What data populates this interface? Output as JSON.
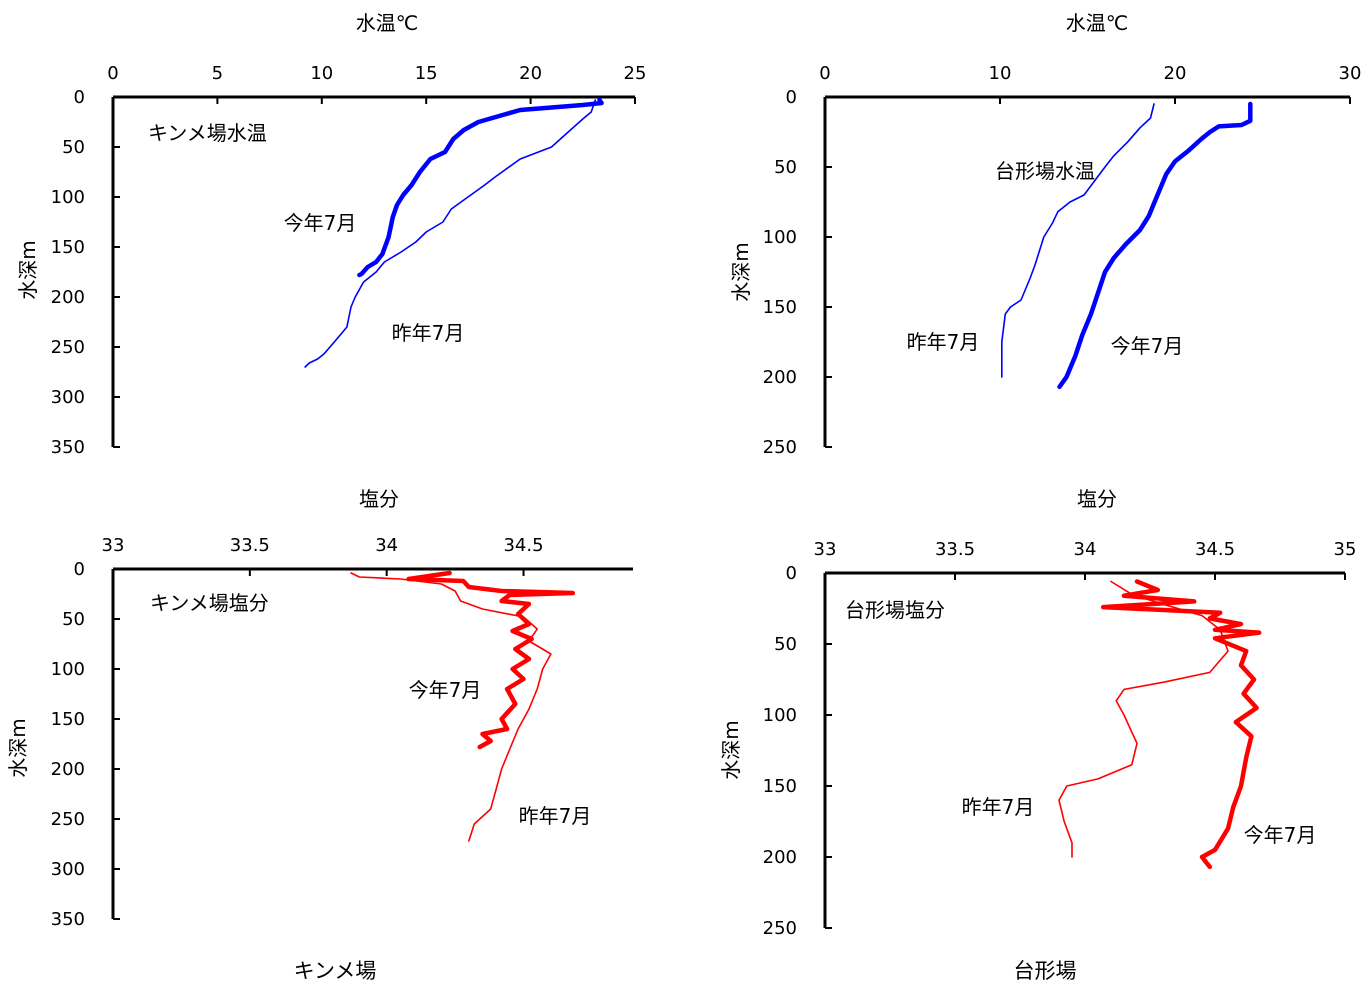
{
  "chart_data": [
    {
      "type": "line",
      "title": "",
      "xlabel": "水温℃",
      "ylabel": "水深m",
      "xlim": [
        0,
        25
      ],
      "ylim": [
        0,
        350
      ],
      "x_axis_position": "top",
      "y_inverted": true,
      "xticks": [
        0,
        5,
        10,
        15,
        20,
        25
      ],
      "yticks": [
        0,
        50,
        100,
        150,
        200,
        250,
        300,
        350
      ],
      "annotation": "キンメ場水温",
      "series": [
        {
          "name": "今年7月",
          "color": "#0000ff",
          "emphasis": "thick",
          "points": [
            [
              23.3,
              3
            ],
            [
              23.4,
              6
            ],
            [
              22.5,
              8
            ],
            [
              19.5,
              13
            ],
            [
              17.5,
              25
            ],
            [
              16.8,
              33
            ],
            [
              16.3,
              42
            ],
            [
              15.9,
              55
            ],
            [
              15.2,
              62
            ],
            [
              14.7,
              75
            ],
            [
              14.3,
              88
            ],
            [
              13.9,
              98
            ],
            [
              13.6,
              108
            ],
            [
              13.4,
              120
            ],
            [
              13.2,
              140
            ],
            [
              12.9,
              157
            ],
            [
              12.6,
              165
            ],
            [
              12.2,
              170
            ],
            [
              11.9,
              177
            ],
            [
              11.8,
              178
            ]
          ]
        },
        {
          "name": "昨年7月",
          "color": "#0000ff",
          "emphasis": "thin",
          "points": [
            [
              23.1,
              3
            ],
            [
              22.9,
              15
            ],
            [
              22.5,
              22
            ],
            [
              21.8,
              35
            ],
            [
              21.0,
              50
            ],
            [
              19.5,
              62
            ],
            [
              18.3,
              80
            ],
            [
              17.8,
              88
            ],
            [
              17.0,
              100
            ],
            [
              16.2,
              112
            ],
            [
              15.8,
              125
            ],
            [
              15.0,
              135
            ],
            [
              14.5,
              145
            ],
            [
              13.8,
              155
            ],
            [
              13.0,
              165
            ],
            [
              12.6,
              175
            ],
            [
              12.0,
              185
            ],
            [
              11.6,
              200
            ],
            [
              11.4,
              210
            ],
            [
              11.2,
              230
            ],
            [
              10.6,
              245
            ],
            [
              10.1,
              257
            ],
            [
              9.8,
              262
            ],
            [
              9.4,
              266
            ],
            [
              9.2,
              270
            ]
          ]
        }
      ],
      "labels": [
        {
          "text": "今年7月",
          "series": "今年7月"
        },
        {
          "text": "昨年7月",
          "series": "昨年7月"
        }
      ]
    },
    {
      "type": "line",
      "title": "",
      "xlabel": "水温℃",
      "ylabel": "水深m",
      "xlim": [
        0,
        30
      ],
      "ylim": [
        0,
        250
      ],
      "x_axis_position": "top",
      "y_inverted": true,
      "xticks": [
        0,
        10,
        20,
        30
      ],
      "yticks": [
        0,
        50,
        100,
        150,
        200,
        250
      ],
      "annotation": "台形場水温",
      "series": [
        {
          "name": "今年7月",
          "color": "#0000ff",
          "emphasis": "thick",
          "points": [
            [
              24.3,
              5
            ],
            [
              24.3,
              17
            ],
            [
              23.8,
              20
            ],
            [
              22.5,
              21
            ],
            [
              22.0,
              25
            ],
            [
              21.5,
              30
            ],
            [
              20.8,
              38
            ],
            [
              20.0,
              46
            ],
            [
              19.5,
              55
            ],
            [
              19.0,
              70
            ],
            [
              18.5,
              85
            ],
            [
              18.0,
              95
            ],
            [
              17.2,
              105
            ],
            [
              16.5,
              115
            ],
            [
              16.0,
              125
            ],
            [
              15.6,
              140
            ],
            [
              15.2,
              155
            ],
            [
              14.7,
              170
            ],
            [
              14.3,
              185
            ],
            [
              13.8,
              200
            ],
            [
              13.4,
              207
            ]
          ]
        },
        {
          "name": "昨年7月",
          "color": "#0000ff",
          "emphasis": "thin",
          "points": [
            [
              18.8,
              5
            ],
            [
              18.6,
              15
            ],
            [
              18.0,
              22
            ],
            [
              17.3,
              32
            ],
            [
              16.5,
              42
            ],
            [
              16.0,
              50
            ],
            [
              15.4,
              60
            ],
            [
              14.8,
              70
            ],
            [
              14.0,
              75
            ],
            [
              13.3,
              82
            ],
            [
              13.0,
              90
            ],
            [
              12.5,
              100
            ],
            [
              12.0,
              120
            ],
            [
              11.7,
              130
            ],
            [
              11.2,
              145
            ],
            [
              10.6,
              150
            ],
            [
              10.3,
              155
            ],
            [
              10.1,
              175
            ],
            [
              10.1,
              200
            ]
          ]
        }
      ],
      "labels": [
        {
          "text": "今年7月",
          "series": "今年7月"
        },
        {
          "text": "昨年7月",
          "series": "昨年7月"
        }
      ]
    },
    {
      "type": "line",
      "title": "",
      "xlabel": "塩分",
      "ylabel": "水深m",
      "xlim": [
        33,
        34.9
      ],
      "ylim": [
        0,
        350
      ],
      "x_axis_position": "top",
      "y_inverted": true,
      "xticks": [
        33,
        33.5,
        34,
        34.5
      ],
      "yticks": [
        0,
        50,
        100,
        150,
        200,
        250,
        300,
        350
      ],
      "annotation": "キンメ場塩分",
      "series": [
        {
          "name": "今年7月",
          "color": "#ff0000",
          "emphasis": "thick",
          "points": [
            [
              34.23,
              4
            ],
            [
              34.08,
              10
            ],
            [
              34.28,
              12
            ],
            [
              34.3,
              18
            ],
            [
              34.42,
              22
            ],
            [
              34.68,
              24
            ],
            [
              34.45,
              26
            ],
            [
              34.42,
              32
            ],
            [
              34.52,
              35
            ],
            [
              34.48,
              45
            ],
            [
              34.52,
              55
            ],
            [
              34.46,
              62
            ],
            [
              34.53,
              70
            ],
            [
              34.47,
              80
            ],
            [
              34.52,
              90
            ],
            [
              34.46,
              100
            ],
            [
              34.5,
              110
            ],
            [
              34.44,
              120
            ],
            [
              34.47,
              135
            ],
            [
              34.42,
              150
            ],
            [
              34.44,
              160
            ],
            [
              34.35,
              165
            ],
            [
              34.38,
              172
            ],
            [
              34.34,
              178
            ]
          ]
        },
        {
          "name": "昨年7月",
          "color": "#ff0000",
          "emphasis": "thin",
          "points": [
            [
              33.87,
              4
            ],
            [
              33.9,
              8
            ],
            [
              34.05,
              10
            ],
            [
              34.2,
              15
            ],
            [
              34.25,
              22
            ],
            [
              34.27,
              32
            ],
            [
              34.35,
              40
            ],
            [
              34.5,
              48
            ],
            [
              34.55,
              60
            ],
            [
              34.52,
              72
            ],
            [
              34.6,
              85
            ],
            [
              34.57,
              100
            ],
            [
              34.55,
              120
            ],
            [
              34.52,
              140
            ],
            [
              34.48,
              160
            ],
            [
              34.45,
              180
            ],
            [
              34.42,
              200
            ],
            [
              34.4,
              220
            ],
            [
              34.38,
              240
            ],
            [
              34.32,
              255
            ],
            [
              34.3,
              272
            ]
          ]
        }
      ],
      "labels": [
        {
          "text": "今年7月",
          "series": "今年7月"
        },
        {
          "text": "昨年7月",
          "series": "昨年7月"
        }
      ]
    },
    {
      "type": "line",
      "title": "",
      "xlabel": "塩分",
      "ylabel": "水深m",
      "xlim": [
        33,
        35
      ],
      "ylim": [
        0,
        250
      ],
      "x_axis_position": "top",
      "y_inverted": true,
      "xticks": [
        33,
        33.5,
        34,
        34.5,
        35
      ],
      "yticks": [
        0,
        50,
        100,
        150,
        200,
        250
      ],
      "annotation": "台形場塩分",
      "series": [
        {
          "name": "今年7月",
          "color": "#ff0000",
          "emphasis": "thick",
          "points": [
            [
              34.2,
              6
            ],
            [
              34.28,
              12
            ],
            [
              34.15,
              16
            ],
            [
              34.42,
              20
            ],
            [
              34.07,
              24
            ],
            [
              34.52,
              28
            ],
            [
              34.48,
              32
            ],
            [
              34.6,
              36
            ],
            [
              34.5,
              40
            ],
            [
              34.67,
              42
            ],
            [
              34.5,
              46
            ],
            [
              34.62,
              55
            ],
            [
              34.6,
              65
            ],
            [
              34.65,
              75
            ],
            [
              34.61,
              85
            ],
            [
              34.66,
              95
            ],
            [
              34.58,
              105
            ],
            [
              34.64,
              115
            ],
            [
              34.62,
              130
            ],
            [
              34.6,
              150
            ],
            [
              34.57,
              165
            ],
            [
              34.55,
              180
            ],
            [
              34.5,
              195
            ],
            [
              34.45,
              200
            ],
            [
              34.48,
              207
            ]
          ]
        },
        {
          "name": "昨年7月",
          "color": "#ff0000",
          "emphasis": "thin",
          "points": [
            [
              34.1,
              6
            ],
            [
              34.18,
              15
            ],
            [
              34.3,
              22
            ],
            [
              34.45,
              30
            ],
            [
              34.52,
              40
            ],
            [
              34.55,
              55
            ],
            [
              34.48,
              70
            ],
            [
              34.3,
              77
            ],
            [
              34.15,
              82
            ],
            [
              34.12,
              90
            ],
            [
              34.15,
              100
            ],
            [
              34.2,
              120
            ],
            [
              34.18,
              135
            ],
            [
              34.05,
              145
            ],
            [
              33.93,
              150
            ],
            [
              33.9,
              160
            ],
            [
              33.92,
              175
            ],
            [
              33.95,
              190
            ],
            [
              33.95,
              200
            ]
          ]
        }
      ],
      "labels": [
        {
          "text": "今年7月",
          "series": "今年7月"
        },
        {
          "text": "昨年7月",
          "series": "昨年7月"
        }
      ]
    }
  ],
  "captions": {
    "left": "キンメ場",
    "right": "台形場"
  }
}
